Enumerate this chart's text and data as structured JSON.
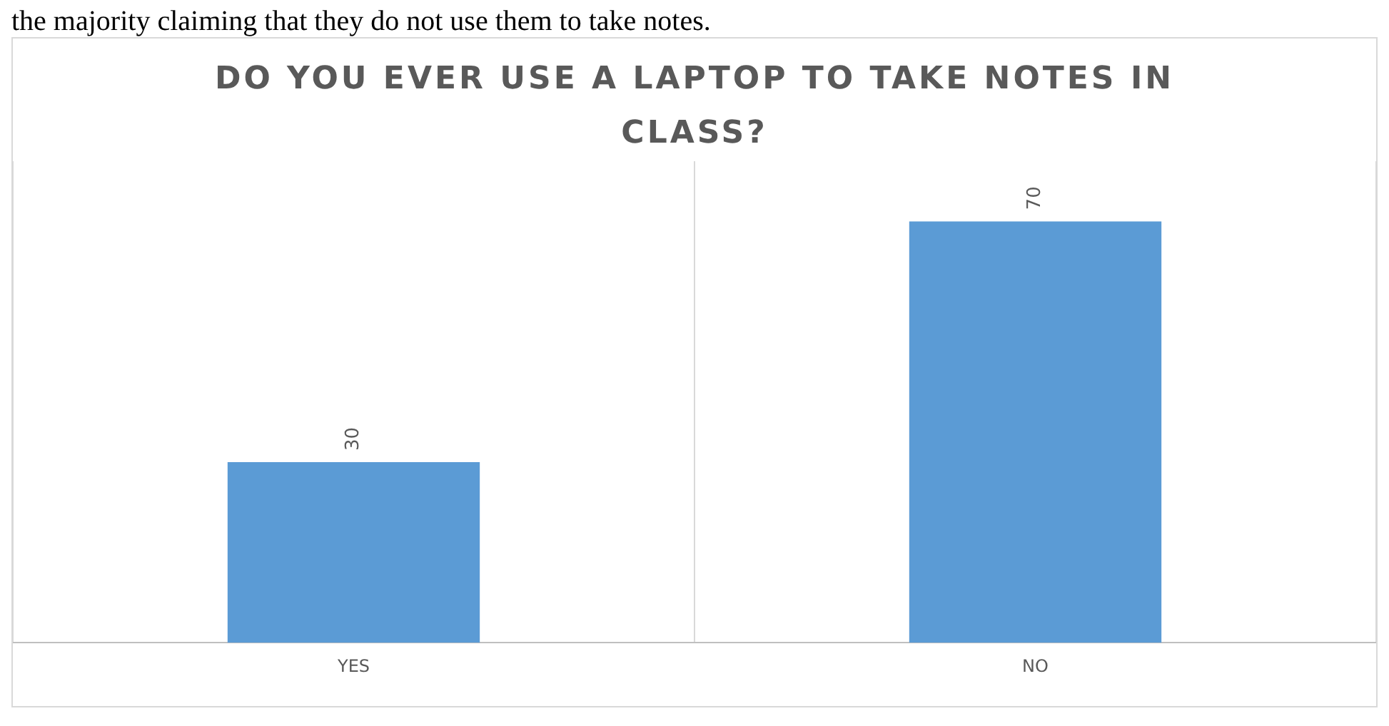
{
  "chart_data": {
    "type": "bar",
    "title": "DO YOU EVER USE A LAPTOP TO TAKE NOTES IN CLASS?",
    "annotations": [
      "the majority claiming that they do not use them to take notes."
    ],
    "categories": [
      "YES",
      "NO"
    ],
    "values": [
      30,
      70
    ],
    "color": "#5b9bd5",
    "data_labels": true,
    "grid": "x",
    "legend": false
  }
}
